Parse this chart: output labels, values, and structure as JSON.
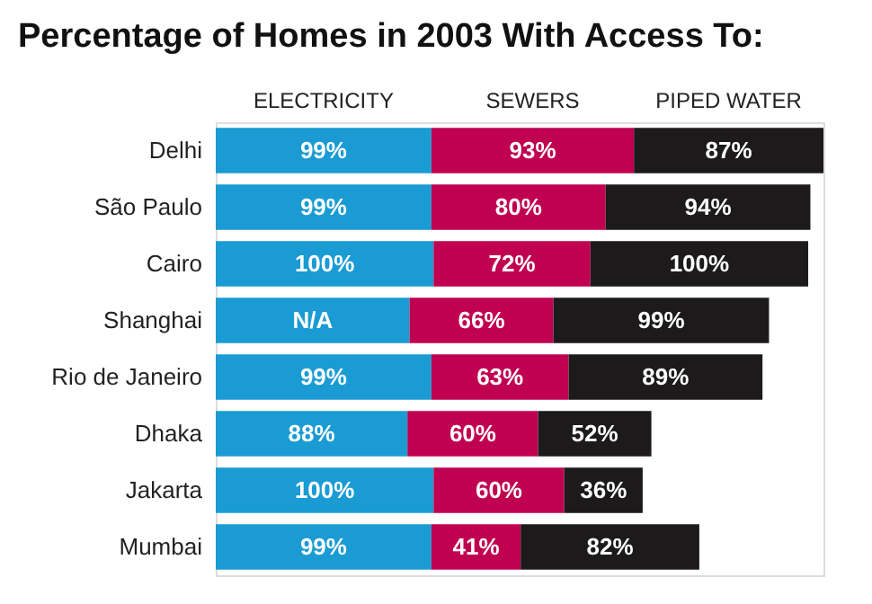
{
  "chart_data": {
    "type": "bar",
    "orientation": "horizontal",
    "stacked": true,
    "title": "Percentage of Homes in 2003 With Access To:",
    "legend": "top",
    "grid": false,
    "categories": [
      "Delhi",
      "São Paulo",
      "Cairo",
      "Shanghai",
      "Rio de Janeiro",
      "Dhaka",
      "Jakarta",
      "Mumbai"
    ],
    "series": [
      {
        "name": "ELECTRICITY",
        "color": "#1a9bd3",
        "values": [
          99,
          99,
          100,
          89,
          99,
          88,
          100,
          99
        ],
        "value_labels": [
          "99%",
          "99%",
          "100%",
          "N/A",
          "99%",
          "88%",
          "100%",
          "99%"
        ]
      },
      {
        "name": "SEWERS",
        "color": "#c00050",
        "values": [
          93,
          80,
          72,
          66,
          63,
          60,
          60,
          41
        ],
        "value_labels": [
          "93%",
          "80%",
          "72%",
          "66%",
          "63%",
          "60%",
          "60%",
          "41%"
        ]
      },
      {
        "name": "PIPED WATER",
        "color": "#1c1a1b",
        "values": [
          87,
          94,
          100,
          99,
          89,
          52,
          36,
          82
        ],
        "value_labels": [
          "87%",
          "94%",
          "100%",
          "99%",
          "89%",
          "52%",
          "36%",
          "82%"
        ]
      }
    ]
  }
}
